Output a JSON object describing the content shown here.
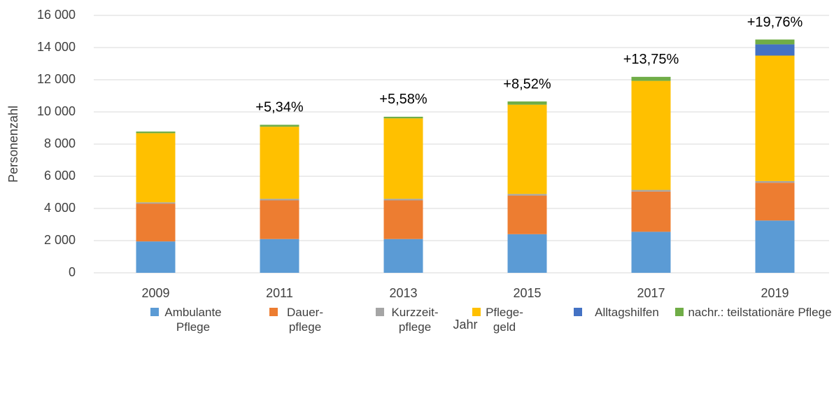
{
  "chart_data": {
    "type": "stacked_bar",
    "xlabel": "Jahr",
    "ylabel": "Personenzahl",
    "categories": [
      "2009",
      "2011",
      "2013",
      "2015",
      "2017",
      "2019"
    ],
    "series": [
      {
        "name": "Ambulante Pflege",
        "color": "#5b9bd5",
        "values": [
          1950,
          2100,
          2100,
          2400,
          2550,
          3250
        ]
      },
      {
        "name": "Dauer-pflege",
        "color": "#ed7d31",
        "values": [
          2350,
          2400,
          2400,
          2400,
          2500,
          2350
        ]
      },
      {
        "name": "Kurzzeit-pflege",
        "color": "#a5a5a5",
        "values": [
          80,
          100,
          100,
          100,
          100,
          100
        ]
      },
      {
        "name": "Pflege-geld",
        "color": "#ffc000",
        "values": [
          4300,
          4480,
          5000,
          5550,
          6780,
          7800
        ]
      },
      {
        "name": "Alltagshilfen",
        "color": "#4472c4",
        "values": [
          0,
          0,
          0,
          0,
          0,
          700
        ]
      },
      {
        "name": "nachr.: teilstationäre Pflege",
        "color": "#70ad47",
        "values": [
          100,
          120,
          100,
          200,
          250,
          300
        ]
      }
    ],
    "growth_labels": [
      null,
      "+5,34%",
      "+5,58%",
      "+8,52%",
      "+13,75%",
      "+19,76%"
    ],
    "ylim": [
      0,
      16000
    ],
    "yticks": [
      0,
      {
        "value": 2000,
        "label": "2 000"
      },
      {
        "value": 4000,
        "label": "4 000"
      },
      {
        "value": 6000,
        "label": "6 000"
      },
      {
        "value": 8000,
        "label": "8 000"
      },
      {
        "value": 10000,
        "label": "10 000"
      },
      {
        "value": 12000,
        "label": "12 000"
      },
      {
        "value": 14000,
        "label": "14 000"
      },
      {
        "value": 16000,
        "label": "16 000"
      }
    ],
    "grid": true,
    "legend": "bottom"
  }
}
